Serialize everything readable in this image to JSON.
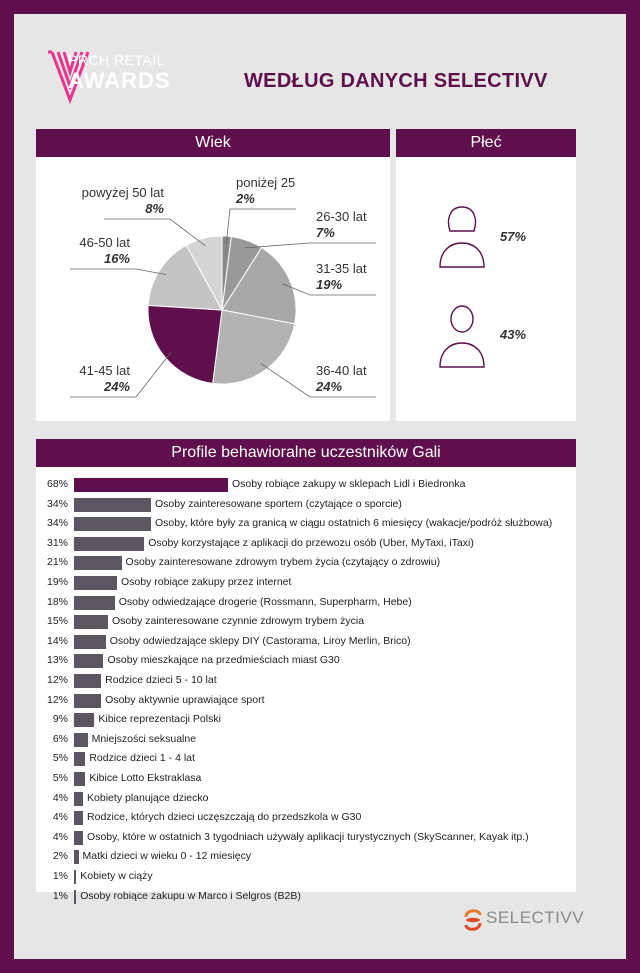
{
  "header": {
    "logo_line1": "PRCH RETAIL",
    "logo_line2": "AWARDS",
    "title": "WEDŁUG DANYCH SELECTIVV"
  },
  "wiek": {
    "title": "Wiek",
    "slices": [
      {
        "label": "poniżej 25",
        "pct": "2%",
        "value": 2,
        "color": "#888888"
      },
      {
        "label": "26-30 lat",
        "pct": "7%",
        "value": 7,
        "color": "#999999"
      },
      {
        "label": "31-35 lat",
        "pct": "19%",
        "value": 19,
        "color": "#a8a8a8"
      },
      {
        "label": "36-40 lat",
        "pct": "24%",
        "value": 24,
        "color": "#b2b2b2"
      },
      {
        "label": "41-45 lat",
        "pct": "24%",
        "value": 24,
        "color": "#5f0f4b"
      },
      {
        "label": "46-50 lat",
        "pct": "16%",
        "value": 16,
        "color": "#c4c4c4"
      },
      {
        "label": "powyżej 50 lat",
        "pct": "8%",
        "value": 8,
        "color": "#d4d4d4"
      }
    ]
  },
  "plec": {
    "title": "Płeć",
    "female_pct": "57%",
    "male_pct": "43%"
  },
  "chart_data": {
    "type": "bar",
    "title": "Profile behawioralne uczestników Gali",
    "categories": [
      "Osoby robiące zakupy w sklepach Lidl i Biedronka",
      "Osoby zainteresowane sportem (czytające o sporcie)",
      "Osoby, które były za granicą w ciągu ostatnich 6 miesięcy (wakacje/podróż służbowa)",
      "Osoby korzystające z aplikacji do przewozu osób (Uber, MyTaxi, iTaxi)",
      "Osoby zainteresowane zdrowym trybem życia (czytający o zdrowiu)",
      "Osoby robiące zakupy przez internet",
      "Osoby odwiedzające drogerie (Rossmann, Superpharm, Hebe)",
      "Osoby zainteresowane czynnie zdrowym trybem życia",
      "Osoby odwiedzające sklepy DIY (Castorama, Liroy Merlin, Brico)",
      "Osoby mieszkające na przedmieściach miast G30",
      "Rodzice dzieci 5 - 10 lat",
      "Osoby aktywnie uprawiające sport",
      "Kibice reprezentacji Polski",
      "Mniejszości seksualne",
      "Rodzice dzieci 1 - 4 lat",
      "Kibice Lotto Ekstraklasa",
      "Kobiety planujące dziecko",
      "Rodzice, których dzieci uczęszczają do przedszkola w G30",
      "Osoby, które w ostatnich 3 tygodniach używały aplikacji turystycznych (SkyScanner, Kayak itp.)",
      "Matki dzieci w wieku 0 - 12 miesięcy",
      "Kobiety w ciąży",
      "Osoby robiące zakupu w Marco i Selgros (B2B)"
    ],
    "values": [
      68,
      34,
      34,
      31,
      21,
      19,
      18,
      15,
      14,
      13,
      12,
      12,
      9,
      6,
      5,
      5,
      4,
      4,
      4,
      2,
      1,
      1
    ],
    "labels": [
      "68%",
      "34%",
      "34%",
      "31%",
      "21%",
      "19%",
      "18%",
      "15%",
      "14%",
      "13%",
      "12%",
      "12%",
      "9%",
      "6%",
      "5%",
      "5%",
      "4%",
      "4%",
      "4%",
      "2%",
      "1%",
      "1%"
    ],
    "colors": {
      "first": "#5f0f4b",
      "rest": "#5b5660"
    }
  },
  "footer": {
    "brand": "SELECTIVV"
  }
}
